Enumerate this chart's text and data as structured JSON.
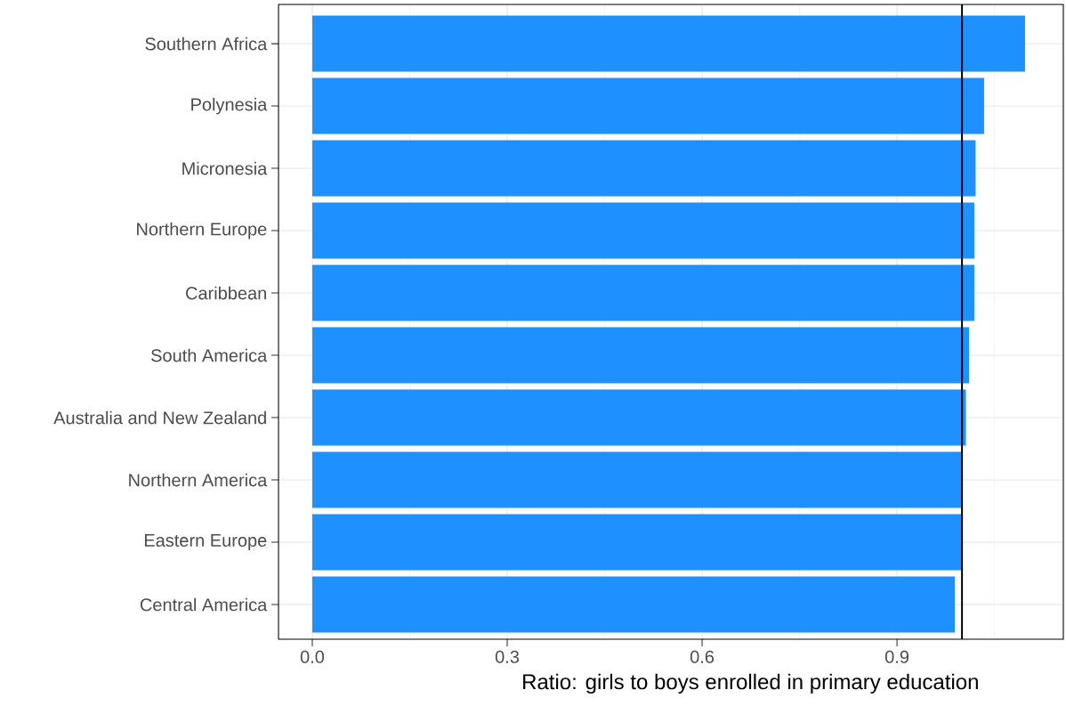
{
  "chart_data": {
    "type": "bar",
    "orientation": "horizontal",
    "xlabel": "Ratio: girls to boys enrolled in primary education",
    "categories": [
      "Southern Africa",
      "Polynesia",
      "Micronesia",
      "Northern Europe",
      "Caribbean",
      "South America",
      "Australia and New Zealand",
      "Northern America",
      "Eastern Europe",
      "Central America"
    ],
    "values": [
      1.097,
      1.034,
      1.021,
      1.019,
      1.019,
      1.011,
      1.006,
      0.999,
      0.999,
      0.989
    ],
    "color": "#1e90ff",
    "xlim": [
      -0.052,
      1.156
    ],
    "xticks": [
      {
        "value": 0,
        "label": "0.0"
      },
      0.3,
      0.6,
      0.9
    ],
    "ref_lines": [
      {
        "axis": "x",
        "value": 1,
        "color": "#000000"
      }
    ],
    "grid": true
  }
}
